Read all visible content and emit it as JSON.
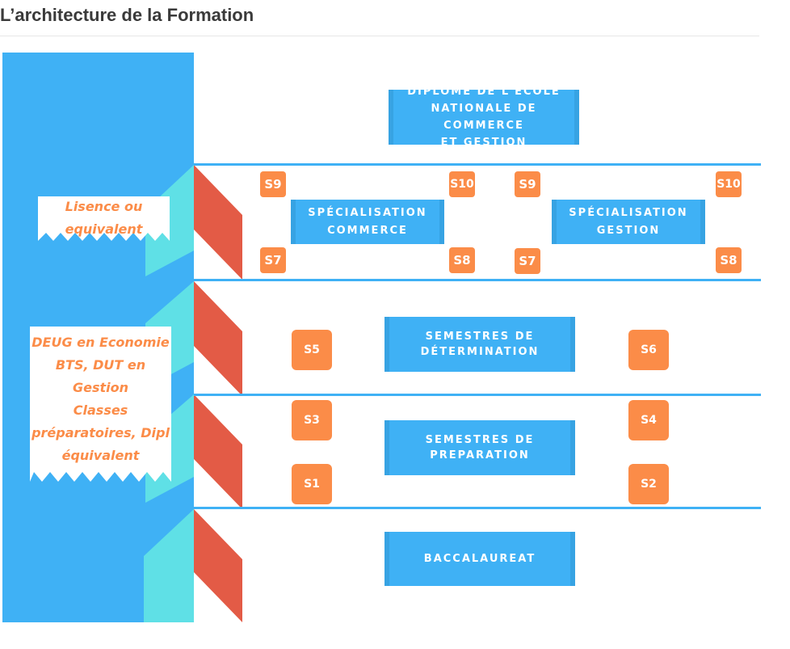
{
  "page": {
    "title": "L’architecture de la Formation"
  },
  "diagram": {
    "diplome": [
      "DIPLOME DE L'ECOLE",
      "NATIONALE DE COMMERCE",
      "ET GESTION"
    ],
    "specialisation_commerce": [
      "SPÉCIALISATION",
      "COMMERCE"
    ],
    "specialisation_gestion": [
      "SPÉCIALISATION",
      "GESTION"
    ],
    "determination": [
      "SEMESTRES DE",
      "DÉTERMINATION"
    ],
    "preparation": [
      "SEMESTRES DE",
      "PREPARATION"
    ],
    "baccalaureat": "BACCALAUREAT",
    "semesters": {
      "commerce_s9": "S9",
      "commerce_s10": "S10",
      "commerce_s7": "S7",
      "commerce_s8": "S8",
      "gestion_s9": "S9",
      "gestion_s10": "S10",
      "gestion_s7": "S7",
      "gestion_s8": "S8",
      "s5": "S5",
      "s6": "S6",
      "s3": "S3",
      "s4": "S4",
      "s1": "S1",
      "s2": "S2"
    },
    "label_licence": [
      "Lisence ou",
      "equivalent"
    ],
    "label_deug": [
      "DEUG en Economie",
      "BTS, DUT en",
      "Gestion",
      "Classes",
      "préparatoires, Dipl",
      "équivalent"
    ],
    "colors": {
      "blue": "#3fb1f5",
      "orange": "#fb8c48",
      "red": "#e35b46",
      "cyan": "#5fe0e6"
    }
  }
}
